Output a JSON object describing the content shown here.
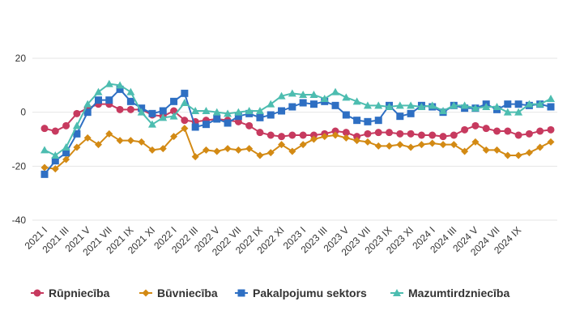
{
  "chart_data": {
    "type": "line",
    "title": "",
    "xlabel": "",
    "ylabel": "",
    "ylim": [
      -40,
      20
    ],
    "yticks": [
      20,
      0,
      -20,
      -40
    ],
    "grid": true,
    "legend_position": "bottom",
    "x_labels": [
      "2021 I",
      "2021 III",
      "2021 V",
      "2021 VII",
      "2021 IX",
      "2021 XI",
      "2022 I",
      "2022 III",
      "2022 V",
      "2022 VII",
      "2022 IX",
      "2022 XI",
      "2023 I",
      "2023 III",
      "2023 V",
      "2023 VII",
      "2023 IX",
      "2023 XI",
      "2024 I",
      "2024 III",
      "2024 V",
      "2024 VII",
      "2024 IX"
    ],
    "x_label_every": 2,
    "series": [
      {
        "name": "Rūpniecība",
        "color": "#c73a5f",
        "marker": "circle",
        "values": [
          -6,
          -7,
          -5,
          -0.5,
          1.5,
          3,
          3,
          1,
          1,
          1,
          -1,
          -1.5,
          0.5,
          -3,
          -3.5,
          -3,
          -2.5,
          -3,
          -3.5,
          -5,
          -7.5,
          -8.5,
          -9,
          -8.5,
          -8.5,
          -8.5,
          -8,
          -7,
          -7.5,
          -9,
          -8,
          -7.5,
          -7.5,
          -8,
          -8,
          -8.5,
          -8.5,
          -9,
          -8.5,
          -6.5,
          -5,
          -6,
          -7,
          -7,
          -8.5,
          -8,
          -7,
          -6.5
        ]
      },
      {
        "name": "Būvniecība",
        "color": "#d38a14",
        "marker": "diamond",
        "values": [
          -20.5,
          -21,
          -17.5,
          -13,
          -9.5,
          -12,
          -8,
          -10.5,
          -10.5,
          -11,
          -14,
          -13.5,
          -9,
          -6,
          -16.5,
          -14,
          -14.5,
          -13.5,
          -14,
          -13.5,
          -16,
          -15,
          -12,
          -14.5,
          -12,
          -10,
          -9,
          -8.5,
          -9.5,
          -10.5,
          -11,
          -12.5,
          -12.5,
          -12,
          -13,
          -12,
          -11.5,
          -12,
          -12,
          -14.5,
          -11,
          -14,
          -14,
          -16,
          -16,
          -15,
          -13,
          -11
        ]
      },
      {
        "name": "Pakalpojumu sektors",
        "color": "#2e6fc3",
        "marker": "square",
        "values": [
          -23,
          -18,
          -15,
          -8,
          0,
          4.5,
          4.5,
          8.5,
          4,
          1.5,
          -0.5,
          0.5,
          4,
          7,
          -5.5,
          -4.5,
          -2.5,
          -4,
          -1.5,
          -0.5,
          -2,
          -1,
          0.5,
          2,
          3.5,
          3,
          4,
          2.5,
          -1,
          -3,
          -3.5,
          -3,
          2.5,
          -1.5,
          -0.5,
          2.5,
          2,
          0,
          2.5,
          1.5,
          1.5,
          3,
          1,
          3,
          3,
          2.5,
          3,
          2
        ]
      },
      {
        "name": "Mazumtirdzniecība",
        "color": "#4dbdb0",
        "marker": "triangle",
        "values": [
          -14,
          -16,
          -13,
          -5,
          3,
          7.5,
          10.5,
          10,
          7.5,
          0,
          -4.5,
          -2,
          -1.5,
          3.5,
          0.5,
          0.5,
          0,
          -0.5,
          0,
          0.5,
          0.5,
          3,
          6,
          7,
          6.5,
          6.5,
          5,
          7.5,
          5.5,
          4,
          2.5,
          2.5,
          2,
          2.5,
          2.5,
          2,
          2.5,
          0.5,
          2.5,
          2.5,
          1.5,
          2,
          2,
          0,
          0,
          3,
          3,
          5
        ]
      }
    ]
  }
}
